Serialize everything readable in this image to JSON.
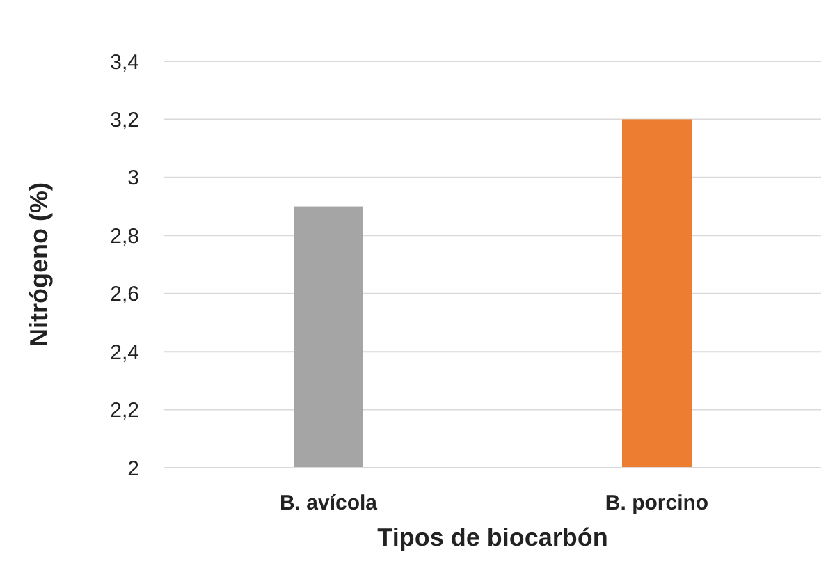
{
  "chart_data": {
    "type": "bar",
    "xlabel": "Tipos de biocarbón",
    "ylabel": "Nitrógeno (%)",
    "categories": [
      "B. avícola",
      "B. porcino"
    ],
    "values": [
      2.9,
      3.2
    ],
    "colors": [
      "#a5a5a5",
      "#ed7d31"
    ],
    "ylim": [
      2,
      3.4
    ],
    "yticks": [
      2,
      {
        "value": 2.2,
        "label": "2,2"
      },
      {
        "value": 2.4,
        "label": "2,4"
      },
      {
        "value": 2.6,
        "label": "2,6"
      },
      {
        "value": 2.8,
        "label": "2,8"
      },
      3,
      {
        "value": 3.2,
        "label": "3,2"
      },
      {
        "value": 3.4,
        "label": "3,4"
      }
    ],
    "grid": "y"
  }
}
